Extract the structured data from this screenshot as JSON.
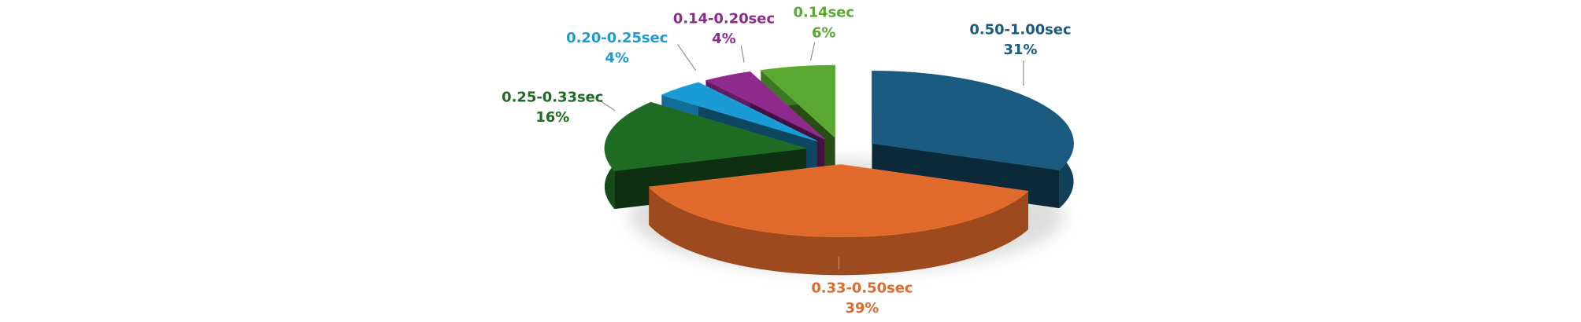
{
  "chart_data": {
    "type": "pie3d",
    "categories": [
      "0.50-1.00sec",
      "0.33-0.50sec",
      "0.25-0.33sec",
      "0.20-0.25sec",
      "0.14-0.20sec",
      "0.14sec"
    ],
    "values": [
      31,
      39,
      16,
      4,
      4,
      6
    ],
    "value_labels": [
      "31%",
      "39%",
      "16%",
      "4%",
      "4%",
      "6%"
    ],
    "colors": [
      "#1a5a7e",
      "#e06a2c",
      "#1e6b24",
      "#1b9bd6",
      "#8e2a8c",
      "#5aa832"
    ]
  }
}
